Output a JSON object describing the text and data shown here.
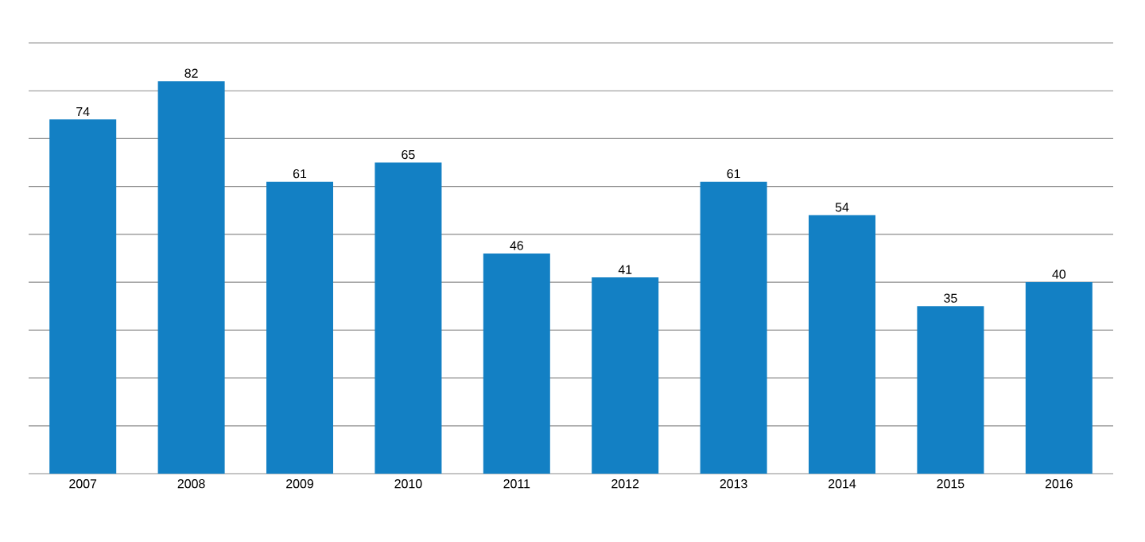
{
  "chart_data": {
    "type": "bar",
    "categories": [
      "2007",
      "2008",
      "2009",
      "2010",
      "2011",
      "2012",
      "2013",
      "2014",
      "2015",
      "2016"
    ],
    "values": [
      74,
      82,
      61,
      65,
      46,
      41,
      61,
      54,
      35,
      40
    ],
    "color": "#1380c4",
    "data_labels": true,
    "ylim": [
      0,
      90
    ],
    "yticks": [
      {
        "value": 0,
        "label": null
      },
      {
        "value": 10,
        "label": null
      },
      {
        "value": 20,
        "label": null
      },
      {
        "value": 30,
        "label": null
      },
      {
        "value": 40,
        "label": null
      },
      {
        "value": 50,
        "label": null
      },
      {
        "value": 60,
        "label": null
      },
      {
        "value": 70,
        "label": null
      },
      {
        "value": 80,
        "label": null
      },
      {
        "value": 90,
        "label": null
      }
    ],
    "grid": "y",
    "tick_labels": "x"
  }
}
